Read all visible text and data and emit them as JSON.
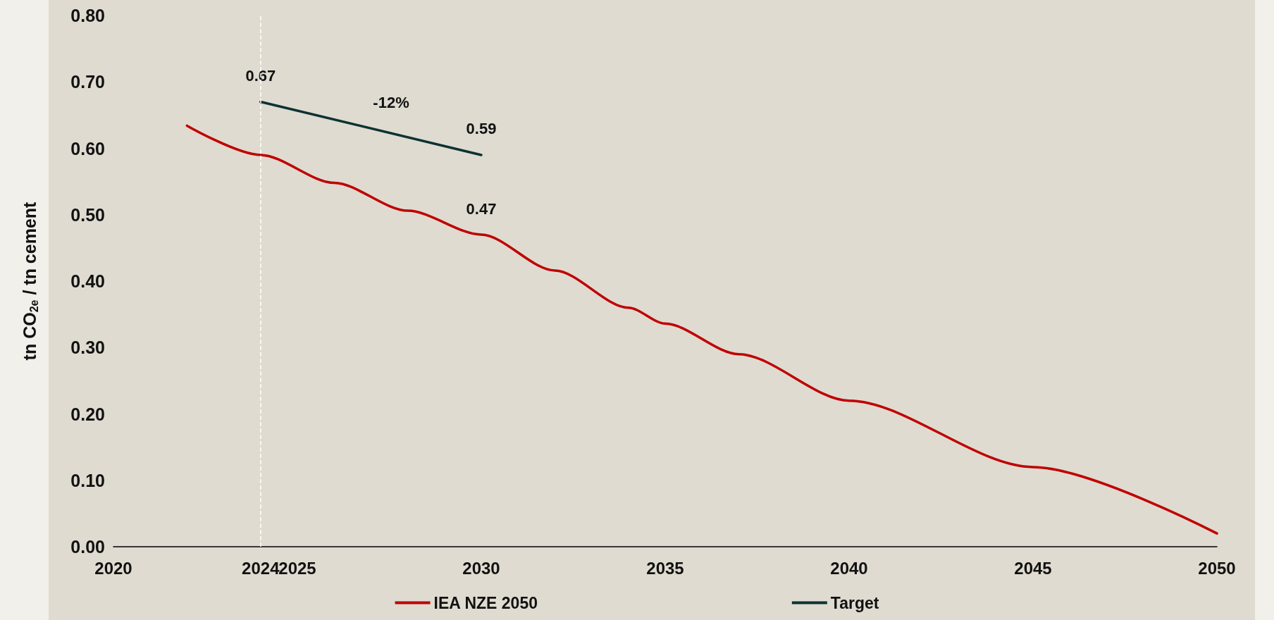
{
  "chart_data": {
    "type": "line",
    "ylabel": "tn CO$_{2e}$ / tn cement",
    "xlim": [
      2020,
      2050
    ],
    "xticks": [
      2020,
      2024,
      2025,
      2030,
      2035,
      2040,
      2045,
      2050
    ],
    "ylim": [
      0,
      0.8
    ],
    "yticks": [
      {
        "value": 0,
        "label": "0.00"
      },
      {
        "value": 0.1,
        "label": "0.10"
      },
      {
        "value": 0.2,
        "label": "0.20"
      },
      {
        "value": 0.3,
        "label": "0.30"
      },
      {
        "value": 0.4,
        "label": "0.40"
      },
      {
        "value": 0.5,
        "label": "0.50"
      },
      {
        "value": 0.6,
        "label": "0.60"
      },
      {
        "value": 0.7,
        "label": "0.70"
      },
      {
        "value": 0.8,
        "label": "0.80"
      }
    ],
    "series": [
      {
        "name": "IEA NZE 2050",
        "color": "#c00000",
        "x": [
          2022,
          2024,
          2026,
          2028,
          2030,
          2032,
          2034,
          2035,
          2037,
          2040,
          2045,
          2050
        ],
        "values": [
          0.634,
          0.59,
          0.548,
          0.506,
          0.47,
          0.416,
          0.36,
          0.336,
          0.29,
          0.22,
          0.12,
          0.02
        ],
        "value_labels": [
          null,
          null,
          null,
          null,
          "0.47",
          null,
          null,
          null,
          null,
          null,
          null,
          null
        ]
      },
      {
        "name": "Target",
        "color": "#0d3232",
        "x": [
          2024,
          2030
        ],
        "values": [
          0.67,
          0.59
        ],
        "value_labels": [
          "0.67",
          "0.59"
        ]
      }
    ],
    "annotations": [
      "-12%"
    ],
    "ref_lines": [
      {
        "axis": "x",
        "value": 2024,
        "color": "#ffffff",
        "line_style": "dashed"
      }
    ],
    "marker": "none",
    "line_style": "solid",
    "grid": false,
    "legend": "bottom"
  }
}
